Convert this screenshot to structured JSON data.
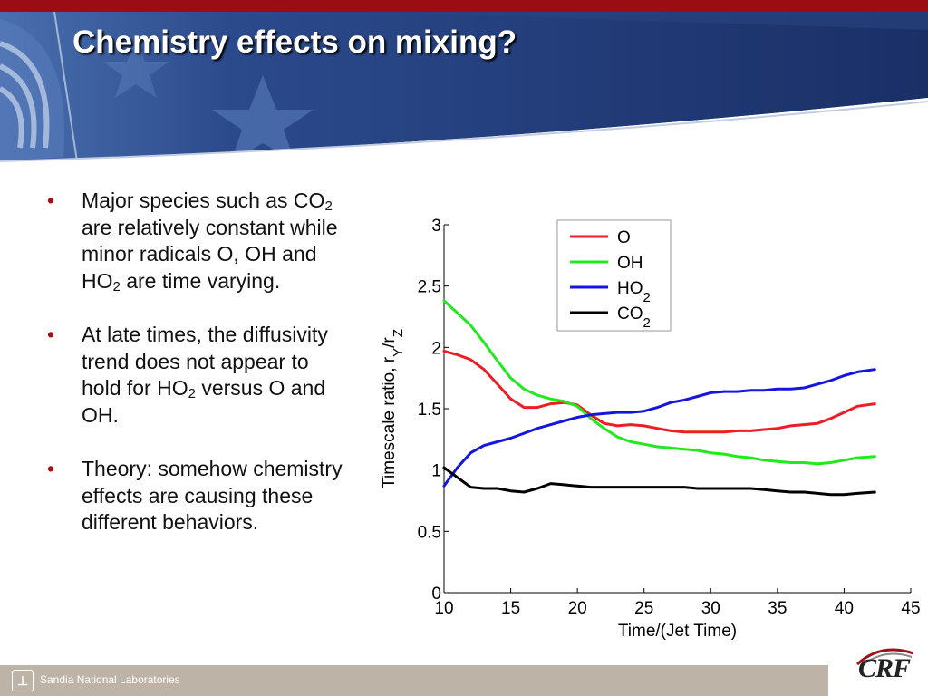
{
  "slide": {
    "title": "Chemistry effects on mixing?",
    "bullets": [
      {
        "html": "Major species such as CO<sub>2</sub> are relatively constant while minor radicals O, OH and HO<sub>2</sub> are time varying."
      },
      {
        "html": "At late times, the diffusivity trend does not appear to hold for HO<sub>2</sub> versus O and OH."
      },
      {
        "html": "Theory: somehow chemistry effects are causing these different behaviors."
      }
    ]
  },
  "footer": {
    "org": "Sandia National Laboratories",
    "crf_logo": "CRF"
  },
  "colors": {
    "topbar": "#9b0d14",
    "header_blue": "#243f7a",
    "O": "#ee1c24",
    "OH": "#22e81f",
    "HO2": "#1515e0",
    "CO2": "#000000"
  },
  "chart_data": {
    "type": "line",
    "xlabel": "Time/(Jet Time)",
    "ylabel": "Timescale ratio, r_Y/r_Z",
    "xlim": [
      10,
      45
    ],
    "ylim": [
      0,
      3
    ],
    "xticks": [
      "10",
      "15",
      "20",
      "25",
      "30",
      "35",
      "40",
      "45"
    ],
    "yticks": [
      "0",
      "0.5",
      "1",
      "1.5",
      "2",
      "2.5",
      "3"
    ],
    "legend_position": "top-right",
    "grid": false,
    "series": [
      {
        "name": "O",
        "legend_main": "O",
        "legend_sub": "",
        "color": "#ee1c24",
        "x": [
          10,
          11,
          12,
          13,
          14,
          15,
          16,
          17,
          18,
          19,
          20,
          21,
          22,
          23,
          24,
          25,
          26,
          27,
          28,
          29,
          30,
          31,
          32,
          33,
          34,
          35,
          36,
          37,
          38,
          39,
          40,
          41,
          42.3
        ],
        "y": [
          1.97,
          1.94,
          1.9,
          1.82,
          1.7,
          1.58,
          1.51,
          1.51,
          1.54,
          1.55,
          1.53,
          1.45,
          1.38,
          1.36,
          1.37,
          1.36,
          1.34,
          1.32,
          1.31,
          1.31,
          1.31,
          1.31,
          1.32,
          1.32,
          1.33,
          1.34,
          1.36,
          1.37,
          1.38,
          1.42,
          1.47,
          1.52,
          1.54
        ]
      },
      {
        "name": "OH",
        "legend_main": "OH",
        "legend_sub": "",
        "color": "#22e81f",
        "x": [
          10,
          11,
          12,
          13,
          14,
          15,
          16,
          17,
          18,
          19,
          20,
          21,
          22,
          23,
          24,
          25,
          26,
          27,
          28,
          29,
          30,
          31,
          32,
          33,
          34,
          35,
          36,
          37,
          38,
          39,
          40,
          41,
          42.3
        ],
        "y": [
          2.38,
          2.28,
          2.18,
          2.04,
          1.89,
          1.75,
          1.66,
          1.61,
          1.58,
          1.56,
          1.52,
          1.42,
          1.34,
          1.27,
          1.23,
          1.21,
          1.19,
          1.18,
          1.17,
          1.16,
          1.14,
          1.13,
          1.11,
          1.1,
          1.08,
          1.07,
          1.06,
          1.06,
          1.05,
          1.06,
          1.08,
          1.1,
          1.11
        ]
      },
      {
        "name": "HO2",
        "legend_main": "HO",
        "legend_sub": "2",
        "color": "#1515e0",
        "x": [
          10,
          11,
          12,
          13,
          14,
          15,
          16,
          17,
          18,
          19,
          20,
          21,
          22,
          23,
          24,
          25,
          26,
          27,
          28,
          29,
          30,
          31,
          32,
          33,
          34,
          35,
          36,
          37,
          38,
          39,
          40,
          41,
          42.3
        ],
        "y": [
          0.87,
          1.02,
          1.14,
          1.2,
          1.23,
          1.26,
          1.3,
          1.34,
          1.37,
          1.4,
          1.43,
          1.45,
          1.46,
          1.47,
          1.47,
          1.48,
          1.51,
          1.55,
          1.57,
          1.6,
          1.63,
          1.64,
          1.64,
          1.65,
          1.65,
          1.66,
          1.66,
          1.67,
          1.7,
          1.73,
          1.77,
          1.8,
          1.82
        ]
      },
      {
        "name": "CO2",
        "legend_main": "CO",
        "legend_sub": "2",
        "color": "#000000",
        "x": [
          10,
          11,
          12,
          13,
          14,
          15,
          16,
          17,
          18,
          19,
          20,
          21,
          22,
          23,
          24,
          25,
          26,
          27,
          28,
          29,
          30,
          31,
          32,
          33,
          34,
          35,
          36,
          37,
          38,
          39,
          40,
          41,
          42.3
        ],
        "y": [
          1.02,
          0.94,
          0.86,
          0.85,
          0.85,
          0.83,
          0.82,
          0.85,
          0.89,
          0.88,
          0.87,
          0.86,
          0.86,
          0.86,
          0.86,
          0.86,
          0.86,
          0.86,
          0.86,
          0.85,
          0.85,
          0.85,
          0.85,
          0.85,
          0.84,
          0.83,
          0.82,
          0.82,
          0.81,
          0.8,
          0.8,
          0.81,
          0.82
        ]
      }
    ]
  }
}
